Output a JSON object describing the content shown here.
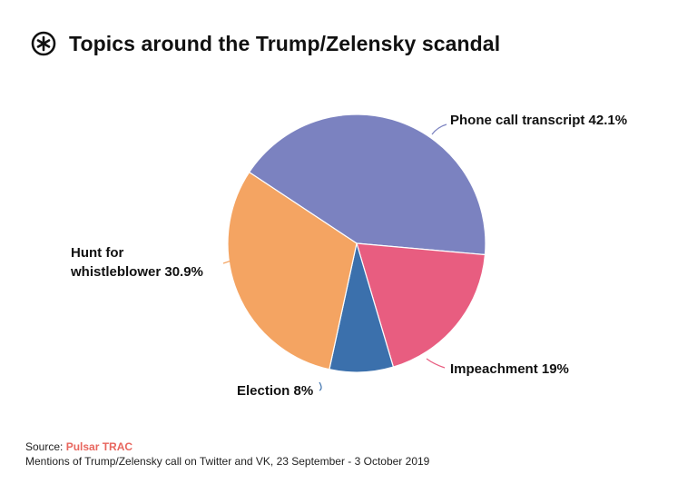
{
  "header": {
    "title": "Topics around the Trump/Zelensky scandal",
    "logo_icon": "pulsar-asterisk-icon"
  },
  "chart_data": {
    "type": "pie",
    "title": "Topics around the Trump/Zelensky scandal",
    "start_angle_deg": -56.5,
    "direction": "clockwise",
    "slices": [
      {
        "name": "Phone call transcript",
        "label": "Phone call transcript 42.1%",
        "value": 42.1,
        "color": "#7b82c0"
      },
      {
        "name": "Impeachment",
        "label": "Impeachment 19%",
        "value": 19,
        "color": "#e85d80"
      },
      {
        "name": "Election",
        "label": "Election 8%",
        "value": 8,
        "color": "#3b70ac"
      },
      {
        "name": "Hunt for whistleblower",
        "label_lines": [
          "Hunt for",
          "whistleblower 30.9%"
        ],
        "value": 30.9,
        "color": "#f4a462"
      }
    ],
    "legend": "none",
    "grid": false
  },
  "footer": {
    "source_prefix": "Source: ",
    "source_name": "Pulsar TRAC",
    "note": "Mentions of Trump/Zelensky call on Twitter and VK, 23 September - 3  October 2019"
  }
}
